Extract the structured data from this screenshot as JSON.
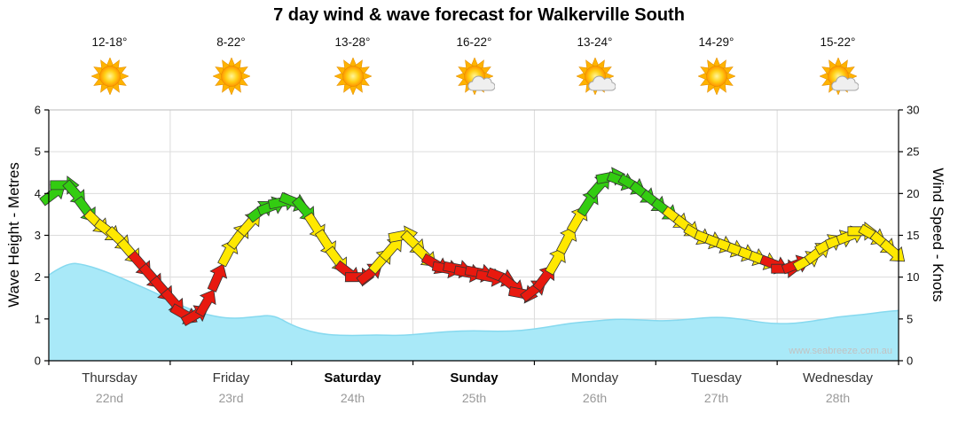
{
  "title": "7 day wind & wave forecast for Walkerville South",
  "watermark": "www.seabreeze.com.au",
  "axes": {
    "left_label": "Wave Height - Metres",
    "right_label": "Wind Speed - Knots",
    "left_ticks": [
      0,
      1,
      2,
      3,
      4,
      5,
      6
    ],
    "right_ticks": [
      0,
      5,
      10,
      15,
      20,
      25,
      30
    ]
  },
  "days": [
    {
      "name": "Thursday",
      "date": "22nd",
      "temp": "12-18°",
      "icon": "sun",
      "bold": false
    },
    {
      "name": "Friday",
      "date": "23rd",
      "temp": "8-22°",
      "icon": "sun",
      "bold": false
    },
    {
      "name": "Saturday",
      "date": "24th",
      "temp": "13-28°",
      "icon": "sun",
      "bold": true
    },
    {
      "name": "Sunday",
      "date": "25th",
      "temp": "16-22°",
      "icon": "sun-cloud",
      "bold": true
    },
    {
      "name": "Monday",
      "date": "26th",
      "temp": "13-24°",
      "icon": "sun-cloud",
      "bold": false
    },
    {
      "name": "Tuesday",
      "date": "27th",
      "temp": "14-29°",
      "icon": "sun",
      "bold": false
    },
    {
      "name": "Wednesday",
      "date": "28th",
      "temp": "15-22°",
      "icon": "sun-cloud",
      "bold": false
    }
  ],
  "colors": {
    "arrow_green": "#33cc11",
    "arrow_yellow": "#ffe800",
    "arrow_red": "#e8190f",
    "wave_fill": "#a9e9f8",
    "wave_edge": "#86d9ef"
  },
  "chart_data": {
    "type": "line",
    "title": "7 day wind & wave forecast for Walkerville South",
    "x_unit": "t = days from start of Thursday 22nd (0..7)",
    "grid": true,
    "wind": {
      "name": "Wind Speed",
      "unit": "knots",
      "ylim": [
        0,
        30
      ],
      "style": "direction arrows oriented along the trend",
      "color_rule": {
        "green": ">= 18 kt",
        "yellow": "12-17 kt",
        "red": "< 12 kt"
      },
      "points": [
        [
          0.04,
          20
        ],
        [
          0.13,
          21
        ],
        [
          0.22,
          20
        ],
        [
          0.31,
          18
        ],
        [
          0.4,
          16.5
        ],
        [
          0.49,
          15.5
        ],
        [
          0.58,
          14.5
        ],
        [
          0.67,
          13
        ],
        [
          0.76,
          11.5
        ],
        [
          0.85,
          10
        ],
        [
          0.94,
          8.5
        ],
        [
          1.03,
          7
        ],
        [
          1.12,
          5.5
        ],
        [
          1.21,
          5.5
        ],
        [
          1.3,
          7
        ],
        [
          1.39,
          10
        ],
        [
          1.48,
          13
        ],
        [
          1.57,
          15
        ],
        [
          1.66,
          16.5
        ],
        [
          1.75,
          18
        ],
        [
          1.84,
          18.5
        ],
        [
          1.93,
          19
        ],
        [
          2.02,
          19
        ],
        [
          2.11,
          18
        ],
        [
          2.2,
          16
        ],
        [
          2.29,
          14
        ],
        [
          2.38,
          12
        ],
        [
          2.47,
          10.5
        ],
        [
          2.56,
          10
        ],
        [
          2.65,
          10.5
        ],
        [
          2.74,
          12
        ],
        [
          2.83,
          13.5
        ],
        [
          2.92,
          15
        ],
        [
          3.01,
          14
        ],
        [
          3.1,
          12.5
        ],
        [
          3.19,
          11.5
        ],
        [
          3.28,
          11
        ],
        [
          3.37,
          11
        ],
        [
          3.46,
          10.5
        ],
        [
          3.55,
          10.5
        ],
        [
          3.64,
          10
        ],
        [
          3.73,
          10
        ],
        [
          3.82,
          9
        ],
        [
          3.91,
          8
        ],
        [
          4.0,
          8.5
        ],
        [
          4.09,
          10
        ],
        [
          4.18,
          12
        ],
        [
          4.27,
          14.5
        ],
        [
          4.36,
          17
        ],
        [
          4.45,
          19
        ],
        [
          4.54,
          21
        ],
        [
          4.63,
          22
        ],
        [
          4.72,
          21.5
        ],
        [
          4.81,
          21
        ],
        [
          4.9,
          20
        ],
        [
          4.99,
          19
        ],
        [
          5.08,
          18
        ],
        [
          5.17,
          17
        ],
        [
          5.26,
          16
        ],
        [
          5.35,
          15
        ],
        [
          5.44,
          14.5
        ],
        [
          5.53,
          14
        ],
        [
          5.62,
          13.5
        ],
        [
          5.71,
          13
        ],
        [
          5.8,
          12.5
        ],
        [
          5.89,
          12
        ],
        [
          5.98,
          11.5
        ],
        [
          6.07,
          11
        ],
        [
          6.16,
          11.5
        ],
        [
          6.25,
          12
        ],
        [
          6.34,
          13
        ],
        [
          6.43,
          14
        ],
        [
          6.52,
          14.5
        ],
        [
          6.61,
          15
        ],
        [
          6.7,
          15.5
        ],
        [
          6.79,
          15
        ],
        [
          6.88,
          14
        ],
        [
          6.96,
          13
        ]
      ]
    },
    "wave": {
      "name": "Wave Height",
      "unit": "metres",
      "ylim": [
        0,
        6
      ],
      "points": [
        [
          0,
          2.05
        ],
        [
          0.15,
          2.35
        ],
        [
          0.3,
          2.3
        ],
        [
          0.5,
          2.1
        ],
        [
          0.7,
          1.85
        ],
        [
          0.9,
          1.6
        ],
        [
          1.1,
          1.3
        ],
        [
          1.3,
          1.1
        ],
        [
          1.5,
          1.0
        ],
        [
          1.7,
          1.05
        ],
        [
          1.85,
          1.1
        ],
        [
          2.0,
          0.85
        ],
        [
          2.15,
          0.7
        ],
        [
          2.3,
          0.62
        ],
        [
          2.5,
          0.6
        ],
        [
          2.7,
          0.62
        ],
        [
          2.9,
          0.6
        ],
        [
          3.1,
          0.65
        ],
        [
          3.3,
          0.7
        ],
        [
          3.5,
          0.72
        ],
        [
          3.7,
          0.7
        ],
        [
          3.9,
          0.72
        ],
        [
          4.1,
          0.8
        ],
        [
          4.3,
          0.9
        ],
        [
          4.5,
          0.95
        ],
        [
          4.7,
          1.0
        ],
        [
          4.9,
          0.97
        ],
        [
          5.1,
          0.95
        ],
        [
          5.3,
          1.0
        ],
        [
          5.5,
          1.05
        ],
        [
          5.7,
          1.0
        ],
        [
          5.9,
          0.9
        ],
        [
          6.1,
          0.88
        ],
        [
          6.3,
          0.95
        ],
        [
          6.5,
          1.05
        ],
        [
          6.7,
          1.1
        ],
        [
          6.9,
          1.18
        ],
        [
          7,
          1.2
        ]
      ]
    }
  }
}
